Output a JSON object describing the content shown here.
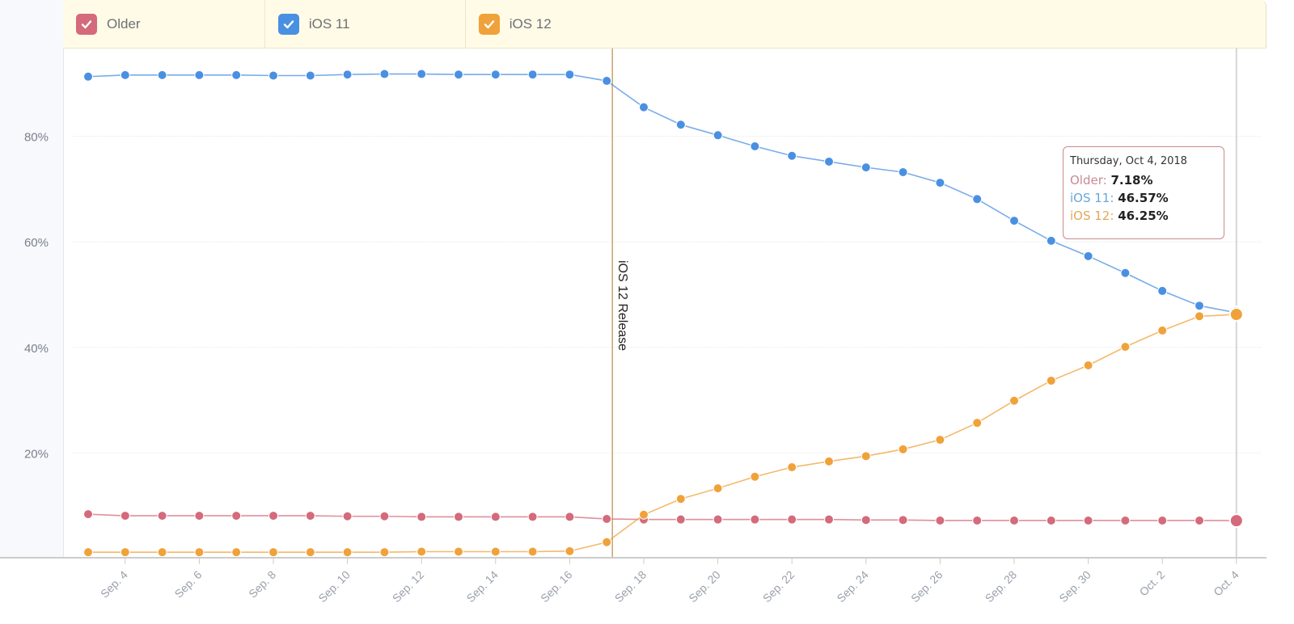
{
  "legend": [
    {
      "name": "Older",
      "color": "#d46a7b",
      "checked": true
    },
    {
      "name": "iOS 11",
      "color": "#4a90e2",
      "checked": true
    },
    {
      "name": "iOS 12",
      "color": "#f0a23a",
      "checked": true
    }
  ],
  "annotation": {
    "label": "iOS 12 Release",
    "date": "Sep. 17",
    "color": "#c9a46a"
  },
  "tooltip": {
    "date": "Thursday, Oct 4, 2018",
    "rows": [
      {
        "name": "Older",
        "value": "7.18%",
        "color": "#c98a94"
      },
      {
        "name": "iOS 11",
        "value": "46.57%",
        "color": "#6aa6d8"
      },
      {
        "name": "iOS 12",
        "value": "46.25%",
        "color": "#e0a85a"
      }
    ]
  },
  "chart_data": {
    "type": "line",
    "title": "",
    "xlabel": "",
    "ylabel": "",
    "ylim": [
      0,
      95
    ],
    "grid": true,
    "legend_position": "top",
    "y_ticks": [
      "20%",
      "40%",
      "60%",
      "80%"
    ],
    "x_tick_labels": [
      "Sep. 4",
      "Sep. 6",
      "Sep. 8",
      "Sep. 10",
      "Sep. 12",
      "Sep. 14",
      "Sep. 16",
      "Sep. 18",
      "Sep. 20",
      "Sep. 22",
      "Sep. 24",
      "Sep. 26",
      "Sep. 28",
      "Sep. 30",
      "Oct. 2",
      "Oct. 4"
    ],
    "x": [
      "Sep. 3",
      "Sep. 4",
      "Sep. 5",
      "Sep. 6",
      "Sep. 7",
      "Sep. 8",
      "Sep. 9",
      "Sep. 10",
      "Sep. 11",
      "Sep. 12",
      "Sep. 13",
      "Sep. 14",
      "Sep. 15",
      "Sep. 16",
      "Sep. 17",
      "Sep. 18",
      "Sep. 19",
      "Sep. 20",
      "Sep. 21",
      "Sep. 22",
      "Sep. 23",
      "Sep. 24",
      "Sep. 25",
      "Sep. 26",
      "Sep. 27",
      "Sep. 28",
      "Sep. 29",
      "Sep. 30",
      "Oct. 1",
      "Oct. 2",
      "Oct. 3",
      "Oct. 4"
    ],
    "series": [
      {
        "name": "Older",
        "color": "#d46a7b",
        "values": [
          8.4,
          8.1,
          8.1,
          8.1,
          8.1,
          8.1,
          8.1,
          8.0,
          8.0,
          7.9,
          7.9,
          7.9,
          7.9,
          7.9,
          7.5,
          7.4,
          7.4,
          7.4,
          7.4,
          7.4,
          7.4,
          7.3,
          7.3,
          7.2,
          7.2,
          7.2,
          7.2,
          7.2,
          7.2,
          7.2,
          7.2,
          7.18
        ]
      },
      {
        "name": "iOS 11",
        "color": "#4a90e2",
        "values": [
          91.3,
          91.6,
          91.6,
          91.6,
          91.6,
          91.5,
          91.5,
          91.7,
          91.8,
          91.8,
          91.7,
          91.7,
          91.7,
          91.7,
          90.5,
          85.5,
          82.2,
          80.2,
          78.1,
          76.3,
          75.2,
          74.1,
          73.2,
          71.2,
          68.1,
          64.0,
          60.2,
          57.3,
          54.1,
          50.7,
          47.9,
          46.57
        ]
      },
      {
        "name": "iOS 12",
        "color": "#f0a23a",
        "values": [
          1.2,
          1.2,
          1.2,
          1.2,
          1.2,
          1.2,
          1.2,
          1.2,
          1.2,
          1.3,
          1.3,
          1.3,
          1.3,
          1.4,
          3.1,
          8.3,
          11.3,
          13.3,
          15.5,
          17.3,
          18.4,
          19.4,
          20.7,
          22.5,
          25.7,
          29.9,
          33.7,
          36.6,
          40.1,
          43.2,
          45.9,
          46.25
        ]
      }
    ],
    "annotations": [
      {
        "type": "vline",
        "x": "Sep. 17",
        "label": "iOS 12 Release"
      }
    ]
  }
}
